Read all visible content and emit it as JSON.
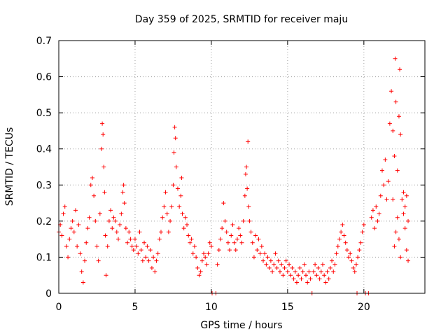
{
  "chart_data": {
    "type": "scatter",
    "title": "Day 359 of 2025, SRMTID for receiver maju",
    "xlabel": "GPS time / hours",
    "ylabel": "SRMTID / TECUs",
    "xlim": [
      0,
      24
    ],
    "ylim": [
      0,
      0.7
    ],
    "xticks": [
      0,
      5,
      10,
      15,
      20
    ],
    "yticks": [
      0,
      0.1,
      0.2,
      0.3,
      0.4,
      0.5,
      0.6,
      0.7
    ],
    "grid": true,
    "marker": "+",
    "color": "#ff0000",
    "series": [
      {
        "name": "SRMTID",
        "points": [
          [
            0.0,
            0.17
          ],
          [
            0.1,
            0.19
          ],
          [
            0.2,
            0.16
          ],
          [
            0.3,
            0.22
          ],
          [
            0.4,
            0.24
          ],
          [
            0.5,
            0.13
          ],
          [
            0.6,
            0.1
          ],
          [
            0.7,
            0.15
          ],
          [
            0.8,
            0.18
          ],
          [
            0.9,
            0.2
          ],
          [
            1.0,
            0.17
          ],
          [
            1.1,
            0.23
          ],
          [
            1.2,
            0.13
          ],
          [
            1.3,
            0.19
          ],
          [
            1.4,
            0.11
          ],
          [
            1.5,
            0.06
          ],
          [
            1.6,
            0.03
          ],
          [
            1.7,
            0.09
          ],
          [
            1.8,
            0.14
          ],
          [
            1.9,
            0.18
          ],
          [
            2.0,
            0.21
          ],
          [
            2.1,
            0.3
          ],
          [
            2.2,
            0.32
          ],
          [
            2.3,
            0.27
          ],
          [
            2.4,
            0.2
          ],
          [
            2.5,
            0.13
          ],
          [
            2.6,
            0.09
          ],
          [
            2.7,
            0.22
          ],
          [
            2.8,
            0.4
          ],
          [
            2.85,
            0.47
          ],
          [
            2.9,
            0.44
          ],
          [
            2.95,
            0.35
          ],
          [
            3.0,
            0.28
          ],
          [
            3.05,
            0.16
          ],
          [
            3.1,
            0.05
          ],
          [
            3.2,
            0.13
          ],
          [
            3.3,
            0.2
          ],
          [
            3.4,
            0.23
          ],
          [
            3.5,
            0.18
          ],
          [
            3.6,
            0.21
          ],
          [
            3.7,
            0.2
          ],
          [
            3.8,
            0.17
          ],
          [
            3.9,
            0.15
          ],
          [
            4.0,
            0.19
          ],
          [
            4.1,
            0.22
          ],
          [
            4.2,
            0.28
          ],
          [
            4.25,
            0.3
          ],
          [
            4.3,
            0.25
          ],
          [
            4.4,
            0.18
          ],
          [
            4.5,
            0.14
          ],
          [
            4.6,
            0.17
          ],
          [
            4.7,
            0.15
          ],
          [
            4.8,
            0.13
          ],
          [
            4.9,
            0.12
          ],
          [
            5.0,
            0.15
          ],
          [
            5.1,
            0.13
          ],
          [
            5.2,
            0.11
          ],
          [
            5.3,
            0.17
          ],
          [
            5.4,
            0.12
          ],
          [
            5.5,
            0.09
          ],
          [
            5.6,
            0.14
          ],
          [
            5.7,
            0.1
          ],
          [
            5.8,
            0.13
          ],
          [
            5.9,
            0.09
          ],
          [
            6.0,
            0.12
          ],
          [
            6.1,
            0.07
          ],
          [
            6.2,
            0.1
          ],
          [
            6.3,
            0.06
          ],
          [
            6.4,
            0.09
          ],
          [
            6.5,
            0.11
          ],
          [
            6.6,
            0.15
          ],
          [
            6.7,
            0.17
          ],
          [
            6.8,
            0.21
          ],
          [
            6.9,
            0.24
          ],
          [
            7.0,
            0.28
          ],
          [
            7.1,
            0.22
          ],
          [
            7.2,
            0.17
          ],
          [
            7.3,
            0.2
          ],
          [
            7.4,
            0.24
          ],
          [
            7.5,
            0.3
          ],
          [
            7.55,
            0.39
          ],
          [
            7.6,
            0.46
          ],
          [
            7.65,
            0.43
          ],
          [
            7.7,
            0.35
          ],
          [
            7.8,
            0.29
          ],
          [
            7.9,
            0.24
          ],
          [
            8.0,
            0.27
          ],
          [
            8.05,
            0.32
          ],
          [
            8.1,
            0.22
          ],
          [
            8.2,
            0.18
          ],
          [
            8.3,
            0.21
          ],
          [
            8.4,
            0.19
          ],
          [
            8.5,
            0.16
          ],
          [
            8.6,
            0.14
          ],
          [
            8.7,
            0.15
          ],
          [
            8.8,
            0.11
          ],
          [
            8.9,
            0.13
          ],
          [
            9.0,
            0.1
          ],
          [
            9.1,
            0.07
          ],
          [
            9.2,
            0.05
          ],
          [
            9.3,
            0.06
          ],
          [
            9.4,
            0.09
          ],
          [
            9.5,
            0.11
          ],
          [
            9.6,
            0.1
          ],
          [
            9.7,
            0.08
          ],
          [
            9.8,
            0.11
          ],
          [
            9.9,
            0.14
          ],
          [
            10.0,
            0.13
          ],
          [
            10.05,
            0.0
          ],
          [
            10.3,
            0.0
          ],
          [
            10.4,
            0.08
          ],
          [
            10.5,
            0.12
          ],
          [
            10.6,
            0.15
          ],
          [
            10.7,
            0.18
          ],
          [
            10.8,
            0.25
          ],
          [
            10.9,
            0.2
          ],
          [
            11.0,
            0.17
          ],
          [
            11.1,
            0.14
          ],
          [
            11.2,
            0.12
          ],
          [
            11.3,
            0.16
          ],
          [
            11.4,
            0.19
          ],
          [
            11.5,
            0.14
          ],
          [
            11.6,
            0.12
          ],
          [
            11.7,
            0.15
          ],
          [
            11.8,
            0.18
          ],
          [
            11.9,
            0.16
          ],
          [
            12.0,
            0.14
          ],
          [
            12.1,
            0.2
          ],
          [
            12.2,
            0.27
          ],
          [
            12.25,
            0.33
          ],
          [
            12.3,
            0.35
          ],
          [
            12.35,
            0.29
          ],
          [
            12.4,
            0.42
          ],
          [
            12.45,
            0.24
          ],
          [
            12.5,
            0.2
          ],
          [
            12.6,
            0.17
          ],
          [
            12.7,
            0.14
          ],
          [
            12.8,
            0.1
          ],
          [
            12.9,
            0.16
          ],
          [
            13.0,
            0.12
          ],
          [
            13.1,
            0.15
          ],
          [
            13.2,
            0.11
          ],
          [
            13.3,
            0.13
          ],
          [
            13.4,
            0.09
          ],
          [
            13.5,
            0.11
          ],
          [
            13.6,
            0.08
          ],
          [
            13.7,
            0.1
          ],
          [
            13.8,
            0.07
          ],
          [
            13.9,
            0.09
          ],
          [
            14.0,
            0.06
          ],
          [
            14.1,
            0.08
          ],
          [
            14.2,
            0.11
          ],
          [
            14.3,
            0.07
          ],
          [
            14.4,
            0.09
          ],
          [
            14.5,
            0.06
          ],
          [
            14.6,
            0.08
          ],
          [
            14.7,
            0.05
          ],
          [
            14.8,
            0.07
          ],
          [
            14.9,
            0.09
          ],
          [
            15.0,
            0.06
          ],
          [
            15.1,
            0.08
          ],
          [
            15.2,
            0.05
          ],
          [
            15.3,
            0.07
          ],
          [
            15.4,
            0.04
          ],
          [
            15.5,
            0.06
          ],
          [
            15.6,
            0.03
          ],
          [
            15.7,
            0.05
          ],
          [
            15.8,
            0.07
          ],
          [
            15.9,
            0.04
          ],
          [
            16.0,
            0.06
          ],
          [
            16.1,
            0.08
          ],
          [
            16.2,
            0.05
          ],
          [
            16.3,
            0.03
          ],
          [
            16.4,
            0.06
          ],
          [
            16.5,
            0.04
          ],
          [
            16.6,
            0.0
          ],
          [
            16.7,
            0.06
          ],
          [
            16.8,
            0.08
          ],
          [
            16.9,
            0.05
          ],
          [
            17.0,
            0.07
          ],
          [
            17.1,
            0.04
          ],
          [
            17.2,
            0.06
          ],
          [
            17.3,
            0.08
          ],
          [
            17.4,
            0.05
          ],
          [
            17.5,
            0.03
          ],
          [
            17.6,
            0.06
          ],
          [
            17.7,
            0.04
          ],
          [
            17.8,
            0.07
          ],
          [
            17.9,
            0.09
          ],
          [
            18.0,
            0.06
          ],
          [
            18.1,
            0.08
          ],
          [
            18.2,
            0.11
          ],
          [
            18.3,
            0.13
          ],
          [
            18.4,
            0.15
          ],
          [
            18.5,
            0.17
          ],
          [
            18.6,
            0.19
          ],
          [
            18.7,
            0.16
          ],
          [
            18.8,
            0.14
          ],
          [
            18.9,
            0.12
          ],
          [
            19.0,
            0.1
          ],
          [
            19.1,
            0.11
          ],
          [
            19.2,
            0.09
          ],
          [
            19.3,
            0.07
          ],
          [
            19.4,
            0.06
          ],
          [
            19.5,
            0.08
          ],
          [
            19.55,
            0.0
          ],
          [
            19.6,
            0.1
          ],
          [
            19.7,
            0.12
          ],
          [
            19.8,
            0.14
          ],
          [
            19.9,
            0.17
          ],
          [
            20.0,
            0.19
          ],
          [
            20.1,
            0.0
          ],
          [
            20.3,
            0.0
          ],
          [
            20.5,
            0.21
          ],
          [
            20.6,
            0.23
          ],
          [
            20.7,
            0.18
          ],
          [
            20.8,
            0.24
          ],
          [
            20.9,
            0.2
          ],
          [
            21.0,
            0.22
          ],
          [
            21.1,
            0.27
          ],
          [
            21.2,
            0.34
          ],
          [
            21.3,
            0.3
          ],
          [
            21.4,
            0.37
          ],
          [
            21.5,
            0.26
          ],
          [
            21.6,
            0.31
          ],
          [
            21.7,
            0.47
          ],
          [
            21.8,
            0.56
          ],
          [
            21.9,
            0.45
          ],
          [
            22.0,
            0.38
          ],
          [
            22.05,
            0.65
          ],
          [
            22.1,
            0.53
          ],
          [
            22.2,
            0.34
          ],
          [
            22.3,
            0.49
          ],
          [
            22.35,
            0.62
          ],
          [
            22.4,
            0.44
          ],
          [
            22.5,
            0.26
          ],
          [
            22.6,
            0.22
          ],
          [
            22.7,
            0.18
          ],
          [
            22.8,
            0.12
          ],
          [
            22.9,
            0.09
          ],
          [
            22.0,
            0.13
          ],
          [
            22.1,
            0.17
          ],
          [
            22.2,
            0.21
          ],
          [
            22.3,
            0.15
          ],
          [
            22.4,
            0.1
          ],
          [
            21.9,
            0.26
          ],
          [
            22.6,
            0.28
          ],
          [
            22.7,
            0.24
          ],
          [
            22.8,
            0.27
          ],
          [
            22.9,
            0.2
          ]
        ]
      }
    ]
  }
}
